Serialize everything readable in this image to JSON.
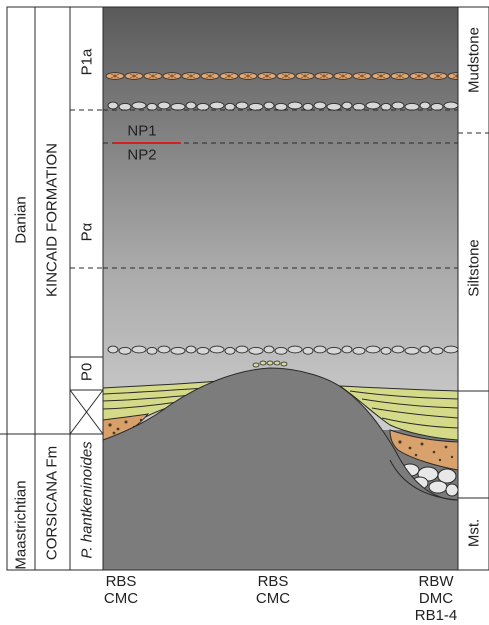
{
  "columns": {
    "stage": {
      "upper": "Danian",
      "lower": "Maastrichtian"
    },
    "formation": {
      "upper": "KINCAID FORMATION",
      "lower": "CORSICANA Fm"
    },
    "biozone": {
      "p1a": "P1a",
      "palpha": "Pα",
      "p0": "P0",
      "lower": "P. hantkeninoides"
    },
    "nannofossil": {
      "upper": "NP1",
      "lower": "NP2"
    },
    "lithology": {
      "mudstone": "Mudstone",
      "siltstone": "Siltstone",
      "mst": "Mst."
    }
  },
  "bottom_labels": {
    "left": {
      "line1": "RBS",
      "line2": "CMC"
    },
    "center": {
      "line1": "RBS",
      "line2": "CMC"
    },
    "right": {
      "line1": "RBW",
      "line2": "DMC",
      "line3": "RB1-4"
    }
  },
  "colors": {
    "background_top": "#5e5e5e",
    "background_bottom": "#e6e6e6",
    "mound": "#7c7c7c",
    "sand_layers": "#d7dc8c",
    "concretion_fill": "#e3a773",
    "np_boundary": "#d62020"
  }
}
